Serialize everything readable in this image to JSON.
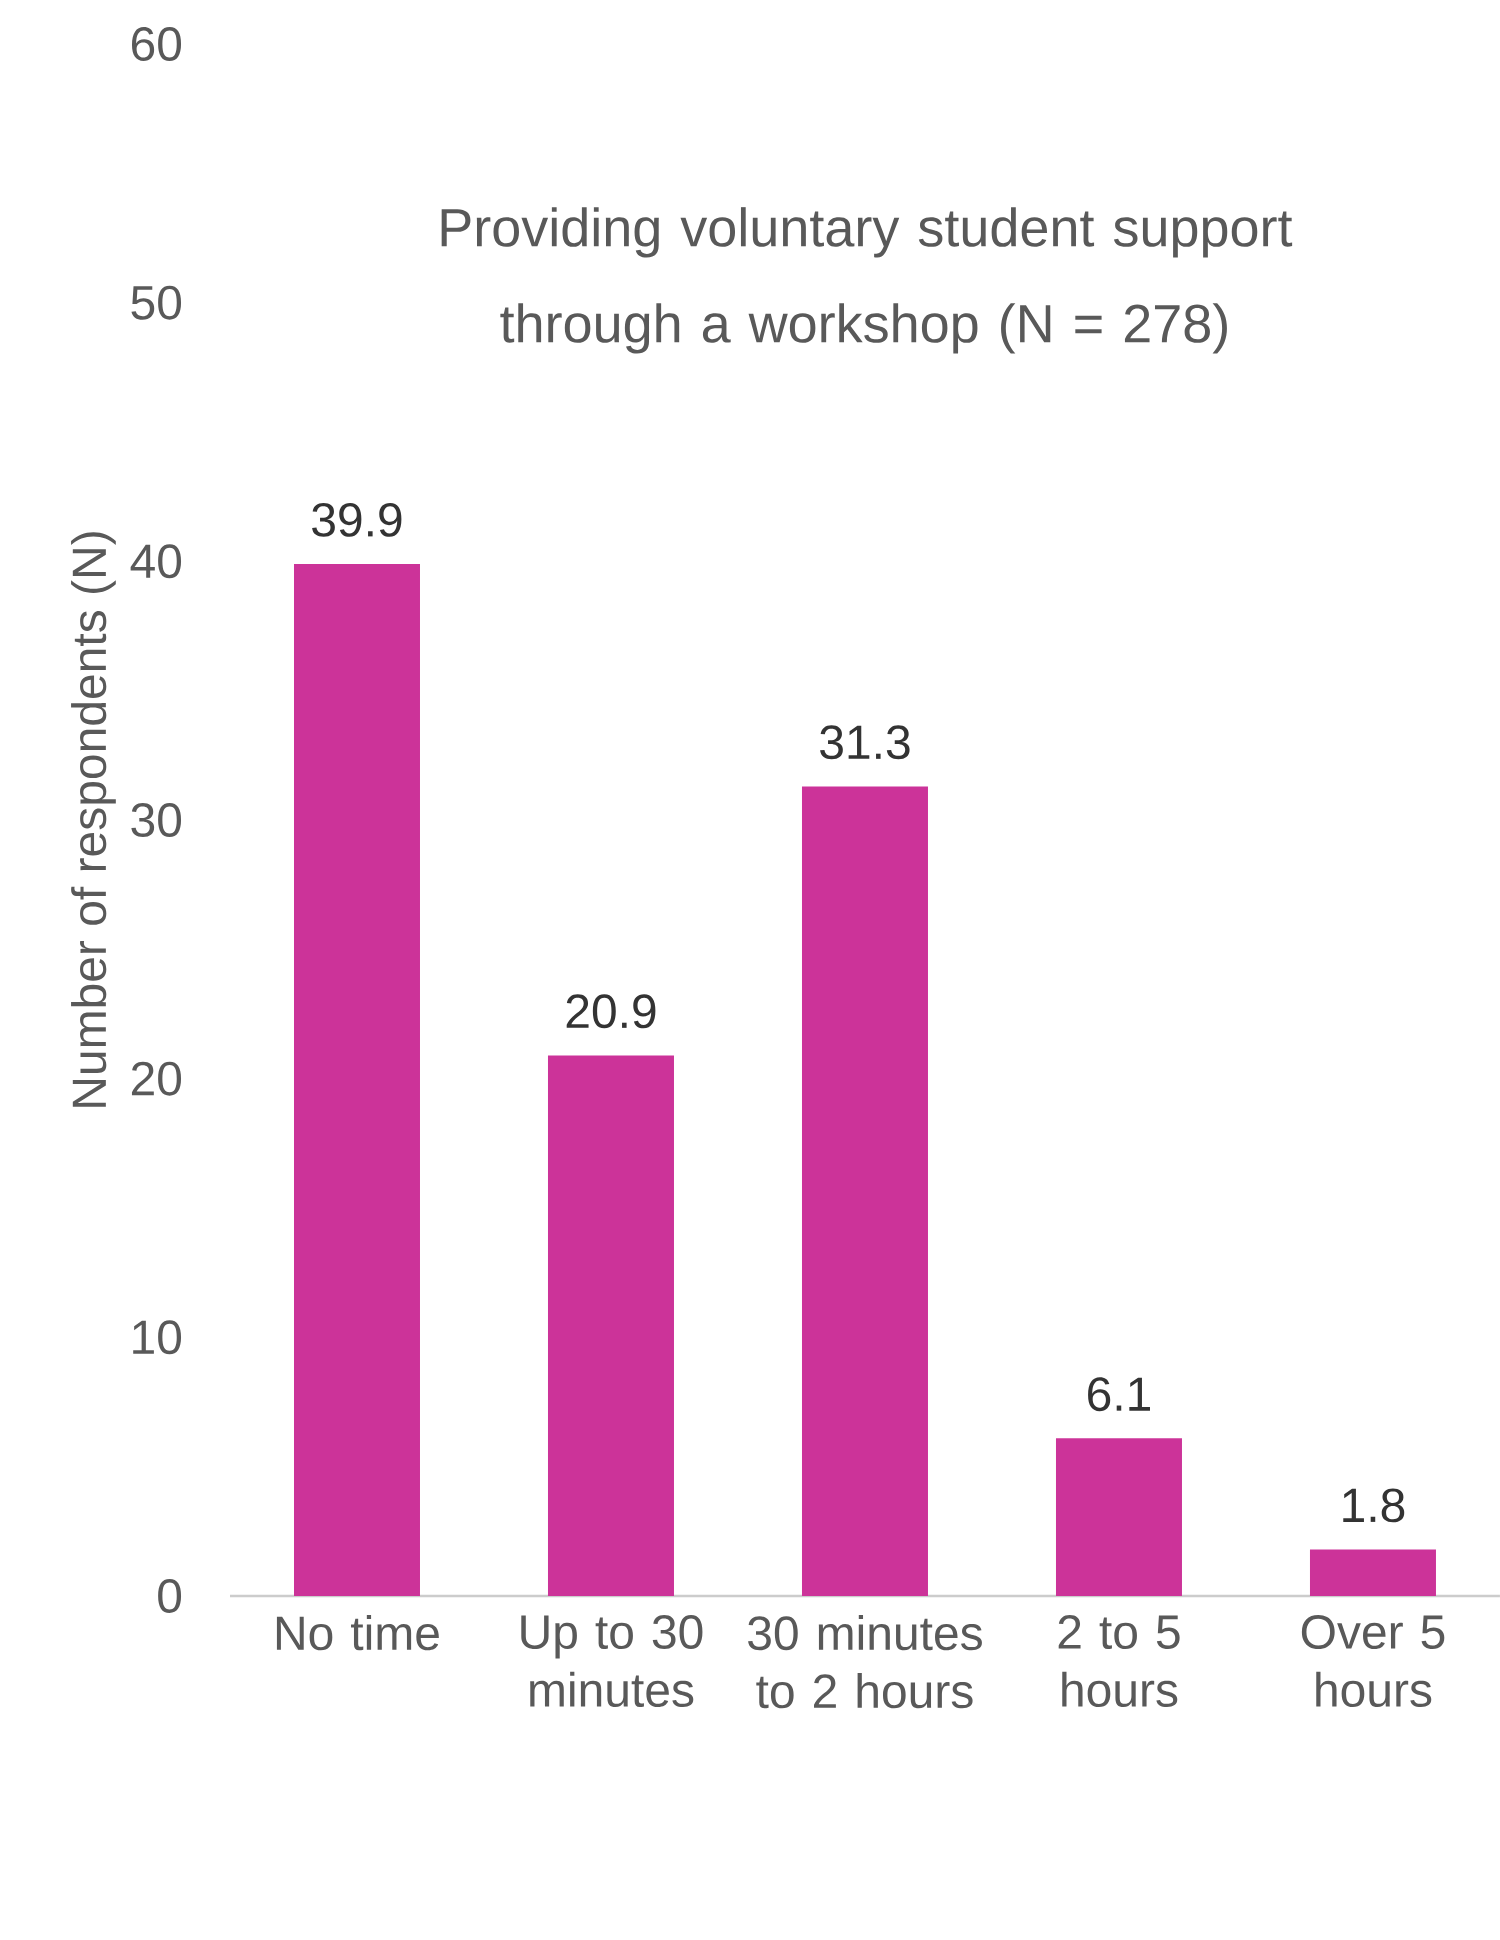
{
  "chart_data": {
    "type": "bar",
    "title": "Providing voluntary student support through a workshop (N = 278)",
    "ylabel": "Number of respondents (N)",
    "categories": [
      "No time",
      "Up to 30 minutes",
      "30 minutes to 2 hours",
      "2 to 5 hours",
      "Over 5 hours"
    ],
    "values": [
      39.9,
      20.9,
      31.3,
      6.1,
      1.8
    ],
    "color": "#cc3399",
    "ylim": [
      0,
      60
    ],
    "yticks": [
      0,
      10,
      20,
      30,
      40,
      50,
      60
    ],
    "data_labels": true
  }
}
